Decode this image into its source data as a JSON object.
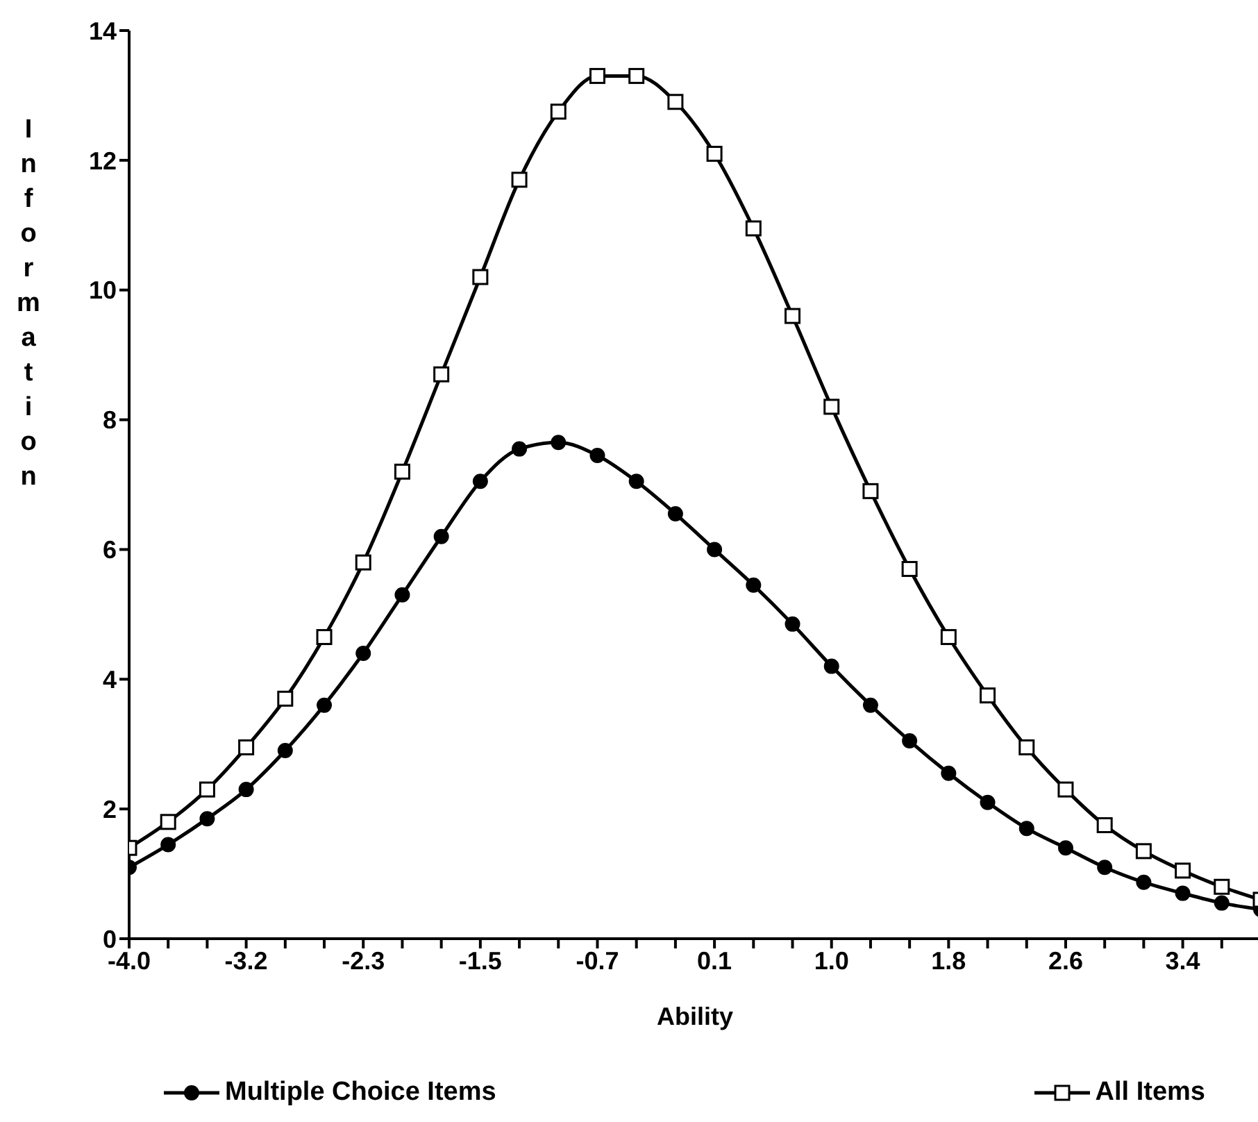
{
  "chart_data": {
    "type": "line",
    "xlabel": "Ability",
    "ylabel": "Information",
    "categories": [
      "-4.0",
      null,
      null,
      "-3.2",
      null,
      null,
      "-2.3",
      null,
      null,
      "-1.5",
      null,
      null,
      "-0.7",
      null,
      null,
      "0.1",
      null,
      null,
      "1.0",
      null,
      null,
      "1.8",
      null,
      null,
      "2.6",
      null,
      null,
      "3.4",
      null,
      null
    ],
    "ylim": [
      0,
      14
    ],
    "yticks": [
      0,
      2,
      4,
      6,
      8,
      10,
      12,
      14
    ],
    "grid": false,
    "legend": "bottom",
    "line_style": "solid",
    "series": [
      {
        "name": "Multiple Choice Items",
        "color": "#000000",
        "marker": "circle",
        "values": [
          1.1,
          1.45,
          1.85,
          2.3,
          2.9,
          3.6,
          4.4,
          5.3,
          6.2,
          7.05,
          7.55,
          7.65,
          7.45,
          7.05,
          6.55,
          6.0,
          5.45,
          4.85,
          4.2,
          3.6,
          3.05,
          2.55,
          2.1,
          1.7,
          1.4,
          1.1,
          0.87,
          0.7,
          0.55,
          0.45
        ]
      },
      {
        "name": "All Items",
        "color": "#000000",
        "marker": "square",
        "values": [
          1.4,
          1.8,
          2.3,
          2.95,
          3.7,
          4.65,
          5.8,
          7.2,
          8.7,
          10.2,
          11.7,
          12.75,
          13.3,
          13.3,
          12.9,
          12.1,
          10.95,
          9.6,
          8.2,
          6.9,
          5.7,
          4.65,
          3.75,
          2.95,
          2.3,
          1.75,
          1.35,
          1.05,
          0.8,
          0.6
        ]
      }
    ]
  }
}
